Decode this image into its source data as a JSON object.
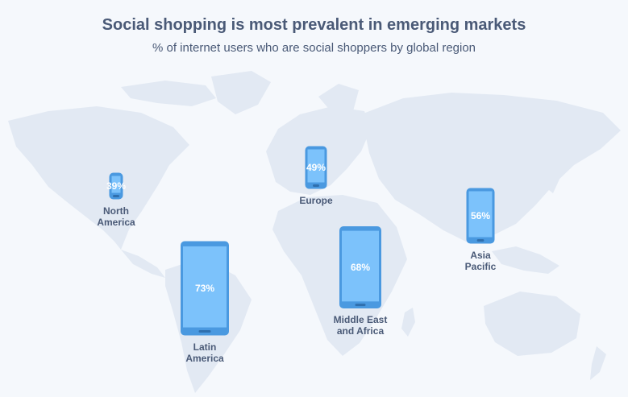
{
  "title": "Social shopping is most prevalent in emerging markets",
  "subtitle": "% of internet users who are social shoppers by global region",
  "colors": {
    "phone_body": "#4a99e0",
    "phone_screen": "#7cc2fb",
    "text": "#4a5a77",
    "map": "#e2e9f3"
  },
  "chart_data": {
    "type": "bar",
    "title": "Social shopping is most prevalent in emerging markets",
    "subtitle": "% of internet users who are social shoppers by global region",
    "unit": "%",
    "categories": [
      "North America",
      "Europe",
      "Asia Pacific",
      "Middle East and Africa",
      "Latin America"
    ],
    "values": [
      39,
      49,
      56,
      68,
      73
    ],
    "regions": [
      {
        "line1": "North",
        "line2": "America",
        "value": 39,
        "value_label": "39%"
      },
      {
        "line1": "Europe",
        "line2": "",
        "value": 49,
        "value_label": "49%"
      },
      {
        "line1": "Asia",
        "line2": "Pacific",
        "value": 56,
        "value_label": "56%"
      },
      {
        "line1": "Middle East",
        "line2": "and Africa",
        "value": 68,
        "value_label": "68%"
      },
      {
        "line1": "Latin",
        "line2": "America",
        "value": 73,
        "value_label": "73%"
      }
    ]
  }
}
